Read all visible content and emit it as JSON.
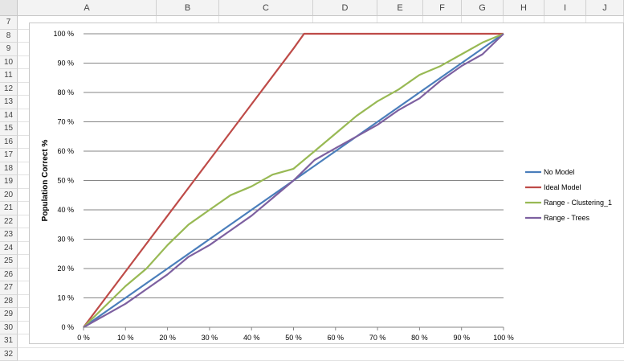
{
  "spreadsheet": {
    "columns": [
      "A",
      "B",
      "C",
      "D",
      "E",
      "F",
      "G",
      "H",
      "I",
      "J"
    ],
    "rows": [
      "7",
      "8",
      "9",
      "10",
      "11",
      "12",
      "13",
      "14",
      "15",
      "16",
      "17",
      "18",
      "19",
      "20",
      "21",
      "22",
      "23",
      "24",
      "25",
      "26",
      "27",
      "28",
      "29",
      "30",
      "31",
      "32"
    ]
  },
  "chart_data": {
    "type": "line",
    "ylabel": "Population Correct %",
    "xlabel": "",
    "x_ticks": [
      "0 %",
      "10 %",
      "20 %",
      "30 %",
      "40 %",
      "50 %",
      "60 %",
      "70 %",
      "80 %",
      "90 %",
      "100 %"
    ],
    "y_ticks": [
      "0 %",
      "10 %",
      "20 %",
      "30 %",
      "40 %",
      "50 %",
      "60 %",
      "70 %",
      "80 %",
      "90 %",
      "100 %"
    ],
    "xlim": [
      0,
      100
    ],
    "ylim": [
      0,
      100
    ],
    "grid": "horizontal",
    "legend_position": "right",
    "series": [
      {
        "name": "No Model",
        "color": "#4a7ebb",
        "x": [
          0,
          10,
          20,
          30,
          40,
          50,
          60,
          70,
          80,
          90,
          100
        ],
        "y": [
          0,
          10,
          20,
          30,
          40,
          50,
          60,
          70,
          80,
          90,
          100
        ]
      },
      {
        "name": "Ideal Model",
        "color": "#be4b48",
        "x": [
          0,
          10,
          20,
          30,
          40,
          50,
          52.5,
          60,
          70,
          80,
          90,
          100
        ],
        "y": [
          0,
          19,
          38,
          57,
          76,
          95,
          100,
          100,
          100,
          100,
          100,
          100
        ]
      },
      {
        "name": "Range - Clustering_1",
        "color": "#98b954",
        "x": [
          0,
          5,
          10,
          15,
          20,
          25,
          30,
          35,
          40,
          45,
          50,
          55,
          60,
          65,
          70,
          75,
          80,
          85,
          90,
          95,
          100
        ],
        "y": [
          0,
          7,
          14,
          20,
          28,
          35,
          40,
          45,
          48,
          52,
          54,
          60,
          66,
          72,
          77,
          81,
          86,
          89,
          93,
          97,
          100
        ]
      },
      {
        "name": "Range - Trees",
        "color": "#7d60a0",
        "x": [
          0,
          5,
          10,
          15,
          20,
          25,
          30,
          35,
          40,
          45,
          50,
          55,
          60,
          65,
          70,
          75,
          80,
          85,
          90,
          95,
          100
        ],
        "y": [
          0,
          4,
          8,
          13,
          18,
          24,
          28,
          33,
          38,
          44,
          50,
          57,
          61,
          65,
          69,
          74,
          78,
          84,
          89,
          93,
          100
        ]
      }
    ]
  }
}
